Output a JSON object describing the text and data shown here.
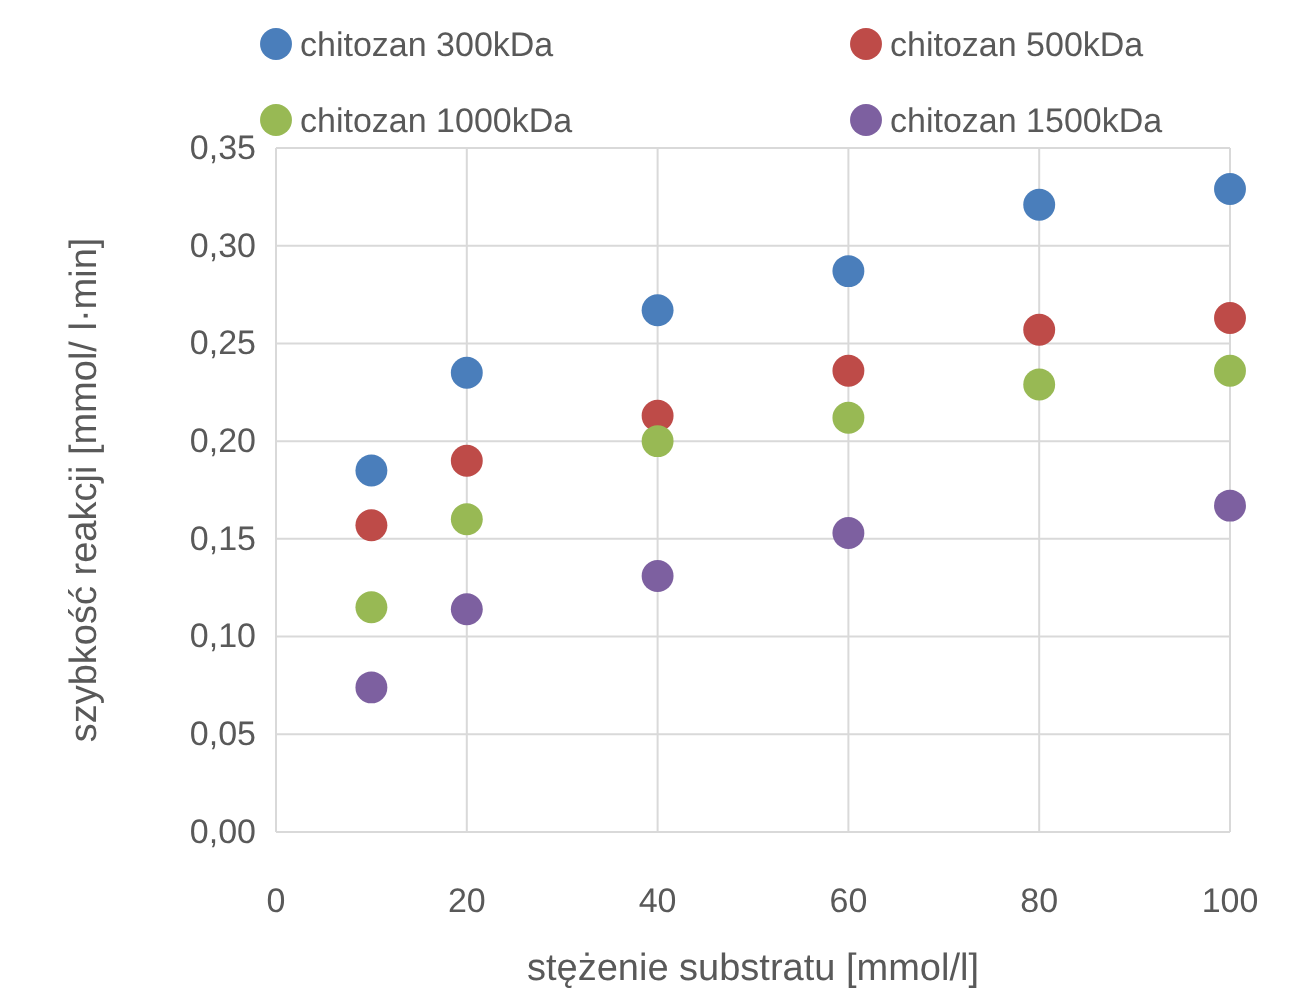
{
  "chart_data": {
    "type": "scatter",
    "xlabel": "stężenie substratu [mmol/l]",
    "ylabel": "szybkość reakcji [mmol/ l·min]",
    "x": [
      10,
      20,
      40,
      60,
      80,
      100
    ],
    "series": [
      {
        "name": "chitozan 300kDa",
        "color": "#4a7ebb",
        "values": [
          0.185,
          0.235,
          0.267,
          0.287,
          0.321,
          0.329
        ]
      },
      {
        "name": "chitozan 500kDa",
        "color": "#be4b48",
        "values": [
          0.157,
          0.19,
          0.213,
          0.236,
          0.257,
          0.263
        ]
      },
      {
        "name": "chitozan 1000kDa",
        "color": "#98b954",
        "values": [
          0.115,
          0.16,
          0.2,
          0.212,
          0.229,
          0.236
        ]
      },
      {
        "name": "chitozan 1500kDa",
        "color": "#7d60a0",
        "values": [
          0.074,
          0.114,
          0.131,
          0.153,
          null,
          0.167
        ]
      }
    ],
    "xlim": [
      0,
      100
    ],
    "xticks": [
      0,
      20,
      40,
      60,
      80,
      100
    ],
    "ylim": [
      0,
      0.35
    ],
    "yticks": [
      {
        "value": 0,
        "label": "0,00"
      },
      {
        "value": 0.05,
        "label": "0,05"
      },
      {
        "value": 0.1,
        "label": "0,10"
      },
      {
        "value": 0.15,
        "label": "0,15"
      },
      {
        "value": 0.2,
        "label": "0,20"
      },
      {
        "value": 0.25,
        "label": "0,25"
      },
      {
        "value": 0.3,
        "label": "0,30"
      },
      {
        "value": 0.35,
        "label": "0,35"
      }
    ],
    "grid": true,
    "legend": "top",
    "marker": "circle"
  }
}
